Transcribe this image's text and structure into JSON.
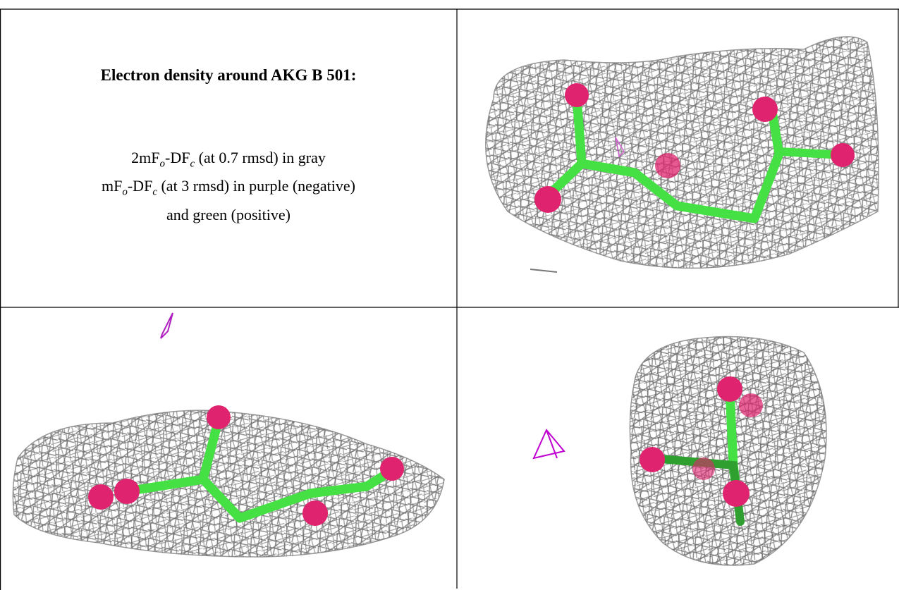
{
  "header": {
    "title": "Electron density around AKG B 501:"
  },
  "legend": {
    "lines": [
      [
        "2mF",
        "o",
        "-DF",
        "c",
        " (at 0.7 rmsd) in gray"
      ],
      [
        "mF",
        "o",
        "-DF",
        "c",
        " (at 3 rmsd) in purple (negative)"
      ],
      [
        "and green (positive)"
      ]
    ]
  }
}
